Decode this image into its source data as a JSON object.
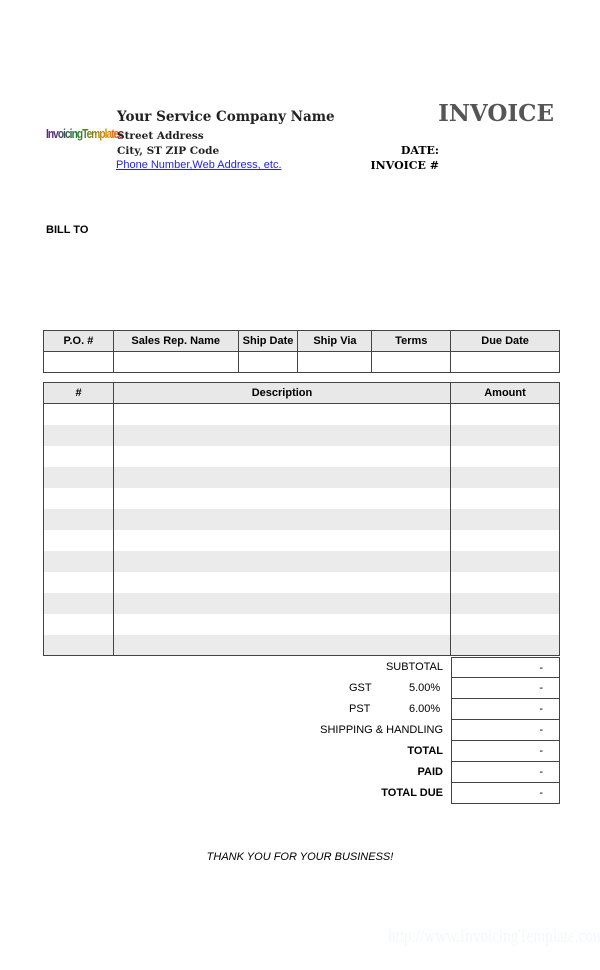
{
  "logo": "InvoicingTemplates",
  "company": {
    "name": "Your Service Company Name",
    "street": "Street Address",
    "city": "City, ST  ZIP Code",
    "contact": "Phone Number,Web Address, etc."
  },
  "title": "INVOICE",
  "date_label": "DATE:",
  "invoice_label": "INVOICE #",
  "bill_to": "BILL TO",
  "order_table": {
    "headers": [
      "P.O. #",
      "Sales Rep. Name",
      "Ship Date",
      "Ship Via",
      "Terms",
      "Due Date"
    ],
    "values": [
      "",
      "",
      "",
      "",
      "",
      ""
    ]
  },
  "items_table": {
    "headers": [
      "#",
      "Description",
      "Amount"
    ],
    "row_count": 12
  },
  "totals": [
    {
      "label": "SUBTOTAL",
      "value": "-"
    },
    {
      "label": "GST",
      "rate": "5.00%",
      "value": "-"
    },
    {
      "label": "PST",
      "rate": "6.00%",
      "value": "-"
    },
    {
      "label": "SHIPPING & HANDLING",
      "value": "-"
    },
    {
      "label": "TOTAL",
      "value": "-",
      "bold": true
    },
    {
      "label": "PAID",
      "value": "-",
      "bold": true
    },
    {
      "label": "TOTAL DUE",
      "value": "-",
      "bold": true
    }
  ],
  "thanks": "THANK YOU FOR YOUR BUSINESS!",
  "watermark": "http://www.InvoicingTemplate.com"
}
